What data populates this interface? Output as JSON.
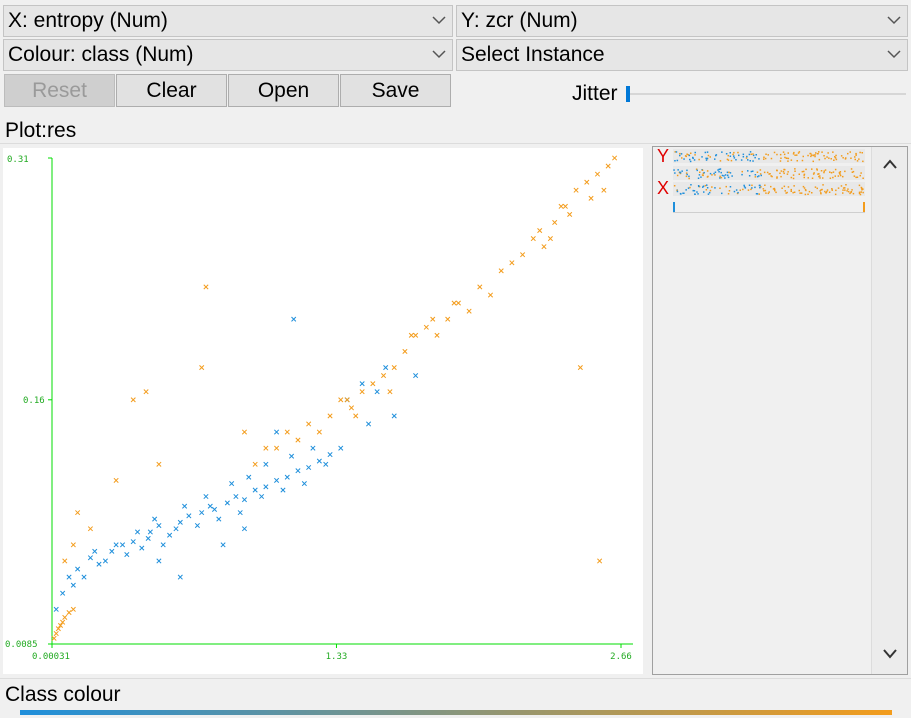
{
  "selectors": {
    "x_axis": "X: entropy (Num)",
    "y_axis": "Y: zcr (Num)",
    "colour": "Colour: class (Num)",
    "instance": "Select Instance"
  },
  "buttons": {
    "reset": "Reset",
    "clear": "Clear",
    "open": "Open",
    "save": "Save"
  },
  "jitter": {
    "label": "Jitter",
    "value": 0
  },
  "plot": {
    "title": "Plot:res"
  },
  "side_panel": {
    "y_marker": "Y",
    "x_marker": "X"
  },
  "legend": {
    "label": "Class colour",
    "colors": [
      "#1f8fdb",
      "#f39c1c"
    ]
  },
  "chart_data": {
    "type": "scatter",
    "xlabel": "",
    "ylabel": "",
    "x_ticks": [
      "0.00031",
      "1.33",
      "2.66"
    ],
    "y_ticks": [
      "0.31",
      "0.16",
      "0.0085"
    ],
    "xlim": [
      0.00031,
      2.66
    ],
    "ylim": [
      0.0085,
      0.31
    ],
    "axis_color": "#00dd00",
    "marker": "x",
    "series": [
      {
        "color": "#1f8fdb",
        "points": [
          [
            0.02,
            0.03
          ],
          [
            0.05,
            0.04
          ],
          [
            0.08,
            0.05
          ],
          [
            0.12,
            0.055
          ],
          [
            0.18,
            0.062
          ],
          [
            0.22,
            0.058
          ],
          [
            0.28,
            0.066
          ],
          [
            0.33,
            0.07
          ],
          [
            0.38,
            0.072
          ],
          [
            0.42,
            0.068
          ],
          [
            0.46,
            0.078
          ],
          [
            0.5,
            0.082
          ],
          [
            0.55,
            0.076
          ],
          [
            0.6,
            0.084
          ],
          [
            0.64,
            0.088
          ],
          [
            0.7,
            0.09
          ],
          [
            0.74,
            0.094
          ],
          [
            0.78,
            0.086
          ],
          [
            0.82,
            0.096
          ],
          [
            0.86,
            0.1
          ],
          [
            0.9,
            0.098
          ],
          [
            0.95,
            0.104
          ],
          [
            1.0,
            0.106
          ],
          [
            1.05,
            0.11
          ],
          [
            1.1,
            0.112
          ],
          [
            1.15,
            0.116
          ],
          [
            1.2,
            0.118
          ],
          [
            1.25,
            0.122
          ],
          [
            1.3,
            0.126
          ],
          [
            1.35,
            0.13
          ],
          [
            0.1,
            0.045
          ],
          [
            0.15,
            0.05
          ],
          [
            0.25,
            0.06
          ],
          [
            0.35,
            0.064
          ],
          [
            0.45,
            0.074
          ],
          [
            0.52,
            0.07
          ],
          [
            0.58,
            0.08
          ],
          [
            0.68,
            0.082
          ],
          [
            0.76,
            0.092
          ],
          [
            0.88,
            0.09
          ],
          [
            0.98,
            0.1
          ],
          [
            1.08,
            0.104
          ],
          [
            1.18,
            0.108
          ],
          [
            1.28,
            0.12
          ],
          [
            1.12,
            0.125
          ],
          [
            1.22,
            0.13
          ],
          [
            1.05,
            0.14
          ],
          [
            1.0,
            0.12
          ],
          [
            0.92,
            0.112
          ],
          [
            0.84,
            0.108
          ],
          [
            0.72,
            0.1
          ],
          [
            0.62,
            0.094
          ],
          [
            0.48,
            0.086
          ],
          [
            0.4,
            0.078
          ],
          [
            0.3,
            0.07
          ],
          [
            0.2,
            0.066
          ],
          [
            1.13,
            0.21
          ],
          [
            1.38,
            0.16
          ],
          [
            1.45,
            0.17
          ],
          [
            1.52,
            0.165
          ],
          [
            1.6,
            0.15
          ],
          [
            1.7,
            0.175
          ],
          [
            1.56,
            0.18
          ],
          [
            1.48,
            0.145
          ],
          [
            0.6,
            0.05
          ],
          [
            0.8,
            0.07
          ],
          [
            0.5,
            0.06
          ],
          [
            0.9,
            0.08
          ]
        ]
      },
      {
        "color": "#f39c1c",
        "points": [
          [
            0.01,
            0.012
          ],
          [
            0.02,
            0.015
          ],
          [
            0.03,
            0.018
          ],
          [
            0.04,
            0.02
          ],
          [
            0.05,
            0.022
          ],
          [
            0.06,
            0.025
          ],
          [
            0.08,
            0.028
          ],
          [
            0.1,
            0.03
          ],
          [
            0.06,
            0.06
          ],
          [
            0.1,
            0.07
          ],
          [
            0.12,
            0.09
          ],
          [
            0.18,
            0.08
          ],
          [
            0.3,
            0.11
          ],
          [
            0.5,
            0.12
          ],
          [
            0.7,
            0.18
          ],
          [
            0.72,
            0.23
          ],
          [
            0.38,
            0.16
          ],
          [
            0.44,
            0.165
          ],
          [
            0.9,
            0.14
          ],
          [
            1.0,
            0.13
          ],
          [
            1.1,
            0.14
          ],
          [
            1.2,
            0.145
          ],
          [
            1.3,
            0.15
          ],
          [
            1.35,
            0.16
          ],
          [
            1.4,
            0.155
          ],
          [
            1.5,
            0.17
          ],
          [
            1.6,
            0.18
          ],
          [
            1.65,
            0.19
          ],
          [
            1.7,
            0.2
          ],
          [
            1.75,
            0.205
          ],
          [
            1.8,
            0.2
          ],
          [
            1.9,
            0.22
          ],
          [
            2.0,
            0.23
          ],
          [
            2.05,
            0.225
          ],
          [
            2.1,
            0.24
          ],
          [
            2.2,
            0.25
          ],
          [
            2.25,
            0.26
          ],
          [
            2.3,
            0.255
          ],
          [
            2.35,
            0.27
          ],
          [
            2.4,
            0.28
          ],
          [
            2.45,
            0.29
          ],
          [
            2.5,
            0.295
          ],
          [
            2.55,
            0.3
          ],
          [
            2.6,
            0.305
          ],
          [
            2.63,
            0.31
          ],
          [
            2.58,
            0.29
          ],
          [
            2.52,
            0.285
          ],
          [
            2.42,
            0.275
          ],
          [
            2.33,
            0.26
          ],
          [
            2.15,
            0.245
          ],
          [
            1.95,
            0.215
          ],
          [
            1.85,
            0.21
          ],
          [
            1.55,
            0.175
          ],
          [
            1.45,
            0.165
          ],
          [
            1.25,
            0.14
          ],
          [
            1.15,
            0.135
          ],
          [
            1.05,
            0.13
          ],
          [
            0.95,
            0.12
          ],
          [
            2.47,
            0.18
          ],
          [
            2.56,
            0.06
          ],
          [
            1.42,
            0.15
          ],
          [
            1.38,
            0.16
          ],
          [
            1.58,
            0.165
          ],
          [
            1.68,
            0.2
          ],
          [
            2.28,
            0.265
          ],
          [
            2.38,
            0.28
          ],
          [
            1.78,
            0.21
          ],
          [
            1.88,
            0.22
          ]
        ]
      }
    ]
  }
}
